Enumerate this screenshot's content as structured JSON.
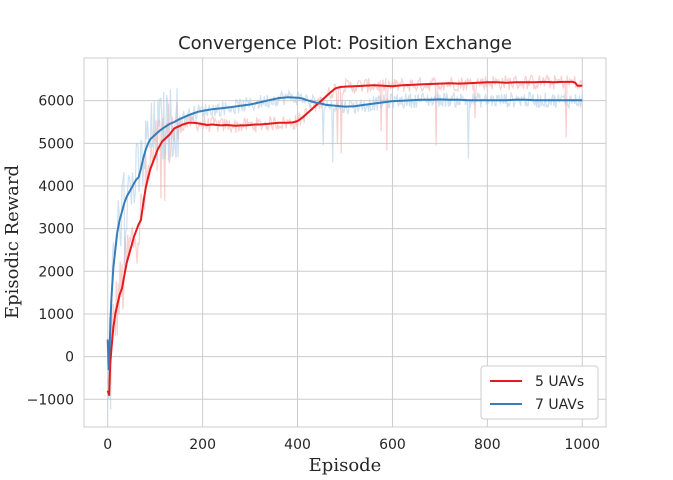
{
  "chart_data": {
    "type": "line",
    "title": "Convergence Plot: Position Exchange",
    "xlabel": "Episode",
    "ylabel": "Episodic Reward",
    "xlim": [
      -50,
      1050
    ],
    "ylim": [
      -1650,
      7000
    ],
    "xticks": [
      0,
      200,
      400,
      600,
      800,
      1000
    ],
    "yticks": [
      -1000,
      0,
      1000,
      2000,
      3000,
      4000,
      5000,
      6000
    ],
    "xtick_labels": [
      "0",
      "200",
      "400",
      "600",
      "800",
      "1000"
    ],
    "ytick_labels": [
      "−1000",
      "0",
      "1000",
      "2000",
      "3000",
      "4000",
      "5000",
      "6000"
    ],
    "grid": true,
    "legend_position": "bottom-right",
    "series": [
      {
        "name": "5 UAVs",
        "color": "#e41a1c",
        "x": [
          0,
          3,
          5,
          8,
          12,
          16,
          20,
          25,
          30,
          35,
          40,
          45,
          50,
          55,
          60,
          65,
          70,
          75,
          80,
          85,
          90,
          95,
          100,
          105,
          110,
          115,
          120,
          130,
          140,
          150,
          160,
          170,
          180,
          190,
          200,
          210,
          220,
          230,
          240,
          250,
          260,
          270,
          280,
          290,
          300,
          310,
          320,
          330,
          340,
          350,
          360,
          370,
          380,
          390,
          400,
          410,
          420,
          430,
          440,
          450,
          460,
          470,
          480,
          490,
          500,
          520,
          540,
          560,
          580,
          600,
          620,
          640,
          660,
          680,
          700,
          720,
          740,
          760,
          780,
          800,
          820,
          840,
          860,
          880,
          900,
          920,
          940,
          960,
          980,
          985,
          990,
          1000
        ],
        "values": [
          -800,
          -900,
          -200,
          200,
          700,
          1000,
          1200,
          1450,
          1600,
          1900,
          2200,
          2400,
          2600,
          2800,
          2950,
          3100,
          3200,
          3600,
          3950,
          4200,
          4400,
          4550,
          4700,
          4850,
          4950,
          5050,
          5100,
          5200,
          5350,
          5400,
          5450,
          5480,
          5480,
          5470,
          5450,
          5430,
          5440,
          5430,
          5420,
          5430,
          5420,
          5410,
          5420,
          5420,
          5430,
          5440,
          5440,
          5450,
          5460,
          5470,
          5480,
          5480,
          5480,
          5490,
          5520,
          5600,
          5700,
          5800,
          5900,
          6000,
          6100,
          6200,
          6290,
          6320,
          6330,
          6340,
          6350,
          6360,
          6350,
          6340,
          6360,
          6370,
          6380,
          6390,
          6400,
          6410,
          6400,
          6410,
          6420,
          6430,
          6430,
          6420,
          6430,
          6430,
          6430,
          6440,
          6430,
          6440,
          6440,
          6420,
          6350,
          6350
        ]
      },
      {
        "name": "7 UAVs",
        "color": "#377eb8",
        "x": [
          0,
          2,
          4,
          6,
          8,
          12,
          16,
          20,
          25,
          30,
          35,
          40,
          45,
          50,
          55,
          60,
          65,
          70,
          75,
          80,
          85,
          90,
          95,
          100,
          110,
          120,
          130,
          140,
          150,
          160,
          170,
          180,
          190,
          200,
          210,
          220,
          240,
          260,
          280,
          300,
          320,
          340,
          360,
          380,
          400,
          410,
          420,
          430,
          440,
          450,
          460,
          480,
          500,
          520,
          540,
          560,
          580,
          600,
          620,
          640,
          660,
          680,
          700,
          720,
          740,
          760,
          780,
          800,
          820,
          840,
          860,
          880,
          900,
          920,
          940,
          960,
          980,
          1000
        ],
        "values": [
          400,
          -300,
          200,
          900,
          1400,
          2100,
          2500,
          2900,
          3200,
          3400,
          3600,
          3750,
          3850,
          3950,
          4050,
          4150,
          4200,
          4400,
          4650,
          4850,
          5000,
          5100,
          5150,
          5200,
          5300,
          5380,
          5450,
          5500,
          5560,
          5610,
          5660,
          5700,
          5740,
          5760,
          5780,
          5800,
          5820,
          5850,
          5880,
          5910,
          5960,
          6010,
          6060,
          6080,
          6070,
          6050,
          6010,
          5980,
          5950,
          5930,
          5900,
          5880,
          5860,
          5870,
          5900,
          5930,
          5960,
          5990,
          6000,
          6010,
          6020,
          6020,
          6030,
          6020,
          6020,
          6010,
          6010,
          6010,
          6010,
          6010,
          6020,
          6020,
          6010,
          6010,
          6010,
          6010,
          6010,
          6010
        ]
      }
    ]
  }
}
